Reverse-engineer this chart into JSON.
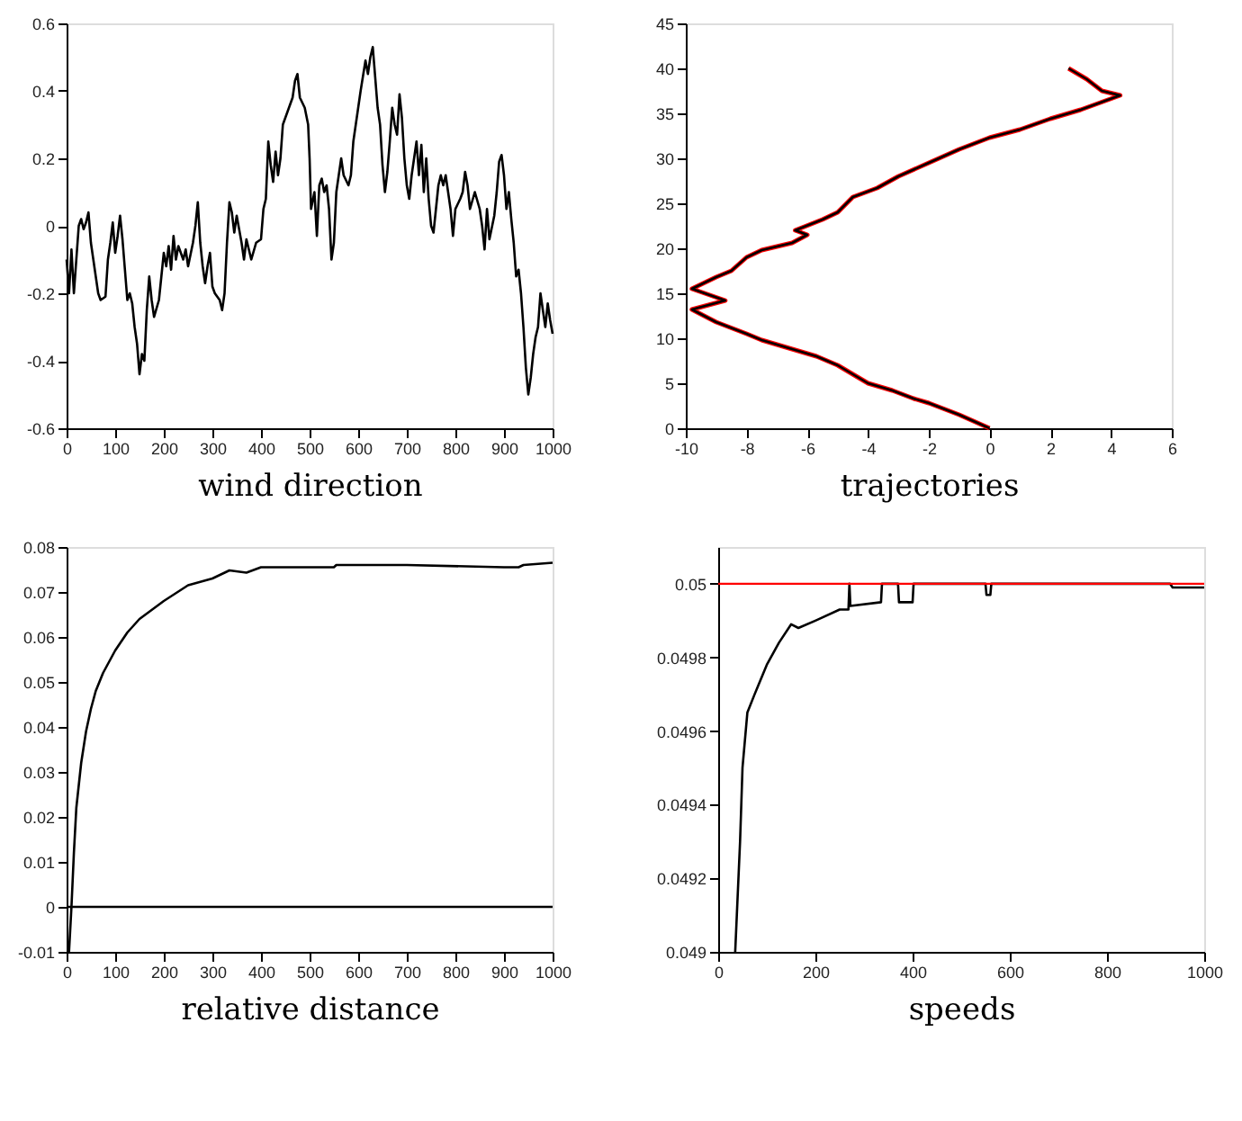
{
  "chart_data": [
    {
      "type": "line",
      "xlabel": "wind direction",
      "xlim": [
        0,
        1000
      ],
      "xticks": [
        0,
        100,
        200,
        300,
        400,
        500,
        600,
        700,
        800,
        900,
        1000
      ],
      "ylim": [
        -0.6,
        0.6
      ],
      "yticks": [
        -0.6,
        -0.4,
        -0.2,
        0,
        0.2,
        0.4,
        0.6
      ],
      "grid": false,
      "legend": false,
      "marker": "none",
      "line_style": "solid",
      "series": [
        {
          "color": "#000000",
          "x": [
            0,
            5,
            10,
            15,
            20,
            25,
            30,
            35,
            40,
            45,
            50,
            55,
            60,
            65,
            70,
            80,
            85,
            90,
            95,
            100,
            105,
            110,
            115,
            120,
            125,
            130,
            135,
            140,
            145,
            150,
            155,
            160,
            165,
            170,
            175,
            180,
            190,
            195,
            200,
            205,
            210,
            215,
            220,
            225,
            230,
            240,
            245,
            250,
            260,
            265,
            270,
            275,
            280,
            285,
            290,
            295,
            300,
            305,
            315,
            320,
            325,
            330,
            335,
            340,
            345,
            350,
            360,
            365,
            370,
            380,
            390,
            400,
            405,
            410,
            415,
            420,
            425,
            430,
            435,
            440,
            445,
            455,
            465,
            470,
            475,
            480,
            490,
            497,
            500,
            503,
            510,
            515,
            520,
            525,
            530,
            535,
            540,
            545,
            550,
            555,
            560,
            565,
            570,
            580,
            585,
            590,
            600,
            605,
            615,
            620,
            625,
            630,
            635,
            640,
            645,
            650,
            655,
            660,
            665,
            670,
            675,
            680,
            685,
            690,
            695,
            700,
            705,
            710,
            715,
            720,
            725,
            730,
            735,
            740,
            745,
            750,
            755,
            760,
            765,
            770,
            775,
            780,
            785,
            790,
            795,
            800,
            810,
            815,
            820,
            825,
            830,
            840,
            850,
            855,
            860,
            865,
            870,
            880,
            885,
            890,
            895,
            900,
            905,
            910,
            915,
            920,
            925,
            930,
            935,
            940,
            945,
            950,
            955,
            960,
            965,
            970,
            975,
            980,
            985,
            990,
            995,
            1000
          ],
          "values": [
            -0.1,
            -0.2,
            -0.07,
            -0.2,
            -0.1,
            0.0,
            0.02,
            -0.01,
            0.01,
            0.04,
            -0.05,
            -0.1,
            -0.15,
            -0.2,
            -0.22,
            -0.21,
            -0.1,
            -0.05,
            0.01,
            -0.08,
            -0.03,
            0.03,
            -0.04,
            -0.13,
            -0.22,
            -0.2,
            -0.23,
            -0.3,
            -0.35,
            -0.44,
            -0.38,
            -0.4,
            -0.25,
            -0.15,
            -0.22,
            -0.27,
            -0.22,
            -0.15,
            -0.08,
            -0.12,
            -0.06,
            -0.13,
            -0.03,
            -0.1,
            -0.06,
            -0.1,
            -0.07,
            -0.12,
            -0.05,
            0.0,
            0.07,
            -0.05,
            -0.12,
            -0.17,
            -0.12,
            -0.08,
            -0.18,
            -0.2,
            -0.22,
            -0.25,
            -0.2,
            -0.05,
            0.07,
            0.04,
            -0.02,
            0.03,
            -0.05,
            -0.1,
            -0.04,
            -0.1,
            -0.05,
            -0.04,
            0.05,
            0.08,
            0.25,
            0.18,
            0.13,
            0.22,
            0.15,
            0.2,
            0.3,
            0.34,
            0.38,
            0.43,
            0.45,
            0.38,
            0.35,
            0.3,
            0.2,
            0.05,
            0.1,
            -0.03,
            0.12,
            0.14,
            0.1,
            0.12,
            0.05,
            -0.1,
            -0.05,
            0.1,
            0.15,
            0.2,
            0.15,
            0.12,
            0.15,
            0.25,
            0.35,
            0.4,
            0.49,
            0.45,
            0.5,
            0.53,
            0.44,
            0.35,
            0.3,
            0.18,
            0.1,
            0.16,
            0.25,
            0.35,
            0.3,
            0.27,
            0.39,
            0.32,
            0.2,
            0.12,
            0.08,
            0.15,
            0.2,
            0.25,
            0.15,
            0.24,
            0.1,
            0.2,
            0.08,
            0.0,
            -0.02,
            0.05,
            0.12,
            0.15,
            0.12,
            0.15,
            0.1,
            0.05,
            -0.03,
            0.05,
            0.08,
            0.1,
            0.16,
            0.12,
            0.05,
            0.1,
            0.05,
            0.0,
            -0.07,
            0.05,
            -0.04,
            0.03,
            0.1,
            0.19,
            0.21,
            0.15,
            0.05,
            0.1,
            0.02,
            -0.05,
            -0.15,
            -0.13,
            -0.2,
            -0.3,
            -0.42,
            -0.5,
            -0.45,
            -0.38,
            -0.33,
            -0.3,
            -0.2,
            -0.25,
            -0.3,
            -0.23,
            -0.28,
            -0.32
          ]
        }
      ]
    },
    {
      "type": "line",
      "xlabel": "trajectories",
      "xlim": [
        -10,
        6
      ],
      "xticks": [
        -10,
        -8,
        -6,
        -4,
        -2,
        0,
        2,
        4,
        6
      ],
      "ylim": [
        0,
        45
      ],
      "yticks": [
        0,
        5,
        10,
        15,
        20,
        25,
        30,
        35,
        40,
        45
      ],
      "grid": false,
      "legend": false,
      "marker": "none",
      "line_style": "solid",
      "series": [
        {
          "color": "#ff0000",
          "x": [
            0,
            -1,
            -2,
            -2.5,
            -3.2,
            -4,
            -4.5,
            -5,
            -5.7,
            -6.5,
            -7.5,
            -8,
            -9,
            -9.8,
            -8.7,
            -9.8,
            -9,
            -8.5,
            -8,
            -7.5,
            -6.5,
            -6,
            -6.4,
            -5.5,
            -5,
            -4.5,
            -3.7,
            -3,
            -2,
            -1,
            0,
            1,
            2,
            3,
            4.3,
            3.7,
            3.2,
            2.6
          ],
          "values": [
            0,
            1.5,
            2.8,
            3.3,
            4.2,
            5,
            6,
            7,
            8,
            8.8,
            9.8,
            10.5,
            11.8,
            13.2,
            14.2,
            15.5,
            16.8,
            17.5,
            19,
            19.8,
            20.6,
            21.5,
            22,
            23.2,
            24,
            25.7,
            26.7,
            28,
            29.5,
            31,
            32.3,
            33.2,
            34.4,
            35.4,
            37,
            37.5,
            38.8,
            40
          ]
        },
        {
          "color": "#000000",
          "x": [
            0,
            -1,
            -2,
            -2.5,
            -3.2,
            -4,
            -4.5,
            -5,
            -5.7,
            -6.5,
            -7.5,
            -8,
            -9,
            -9.8,
            -8.7,
            -9.8,
            -9,
            -8.5,
            -8,
            -7.5,
            -6.5,
            -6,
            -6.4,
            -5.5,
            -5,
            -4.5,
            -3.7,
            -3,
            -2,
            -1,
            0,
            1,
            2,
            3,
            4.3,
            3.7,
            3.2,
            2.6
          ],
          "values": [
            0,
            1.5,
            2.8,
            3.3,
            4.2,
            5,
            6,
            7,
            8,
            8.8,
            9.8,
            10.5,
            11.8,
            13.2,
            14.2,
            15.5,
            16.8,
            17.5,
            19,
            19.8,
            20.6,
            21.5,
            22,
            23.2,
            24,
            25.7,
            26.7,
            28,
            29.5,
            31,
            32.3,
            33.2,
            34.4,
            35.4,
            37,
            37.5,
            38.8,
            40
          ]
        }
      ]
    },
    {
      "type": "line",
      "xlabel": "relative distance",
      "xlim": [
        0,
        1000
      ],
      "xticks": [
        0,
        100,
        200,
        300,
        400,
        500,
        600,
        700,
        800,
        900,
        1000
      ],
      "ylim": [
        -0.01,
        0.08
      ],
      "yticks": [
        -0.01,
        0,
        0.01,
        0.02,
        0.03,
        0.04,
        0.05,
        0.06,
        0.07,
        0.08
      ],
      "grid": false,
      "legend": false,
      "marker": "none",
      "line_style": "solid",
      "ref_lines": [
        {
          "axis": "y",
          "value": 0,
          "color": "#000000"
        }
      ],
      "series": [
        {
          "color": "#000000",
          "x": [
            5,
            10,
            15,
            20,
            30,
            40,
            50,
            60,
            75,
            100,
            125,
            150,
            175,
            200,
            250,
            300,
            335,
            370,
            400,
            500,
            550,
            555,
            700,
            900,
            930,
            940,
            1000
          ],
          "values": [
            -0.01,
            0.0,
            0.012,
            0.022,
            0.032,
            0.039,
            0.044,
            0.048,
            0.052,
            0.057,
            0.061,
            0.064,
            0.066,
            0.068,
            0.0715,
            0.073,
            0.0748,
            0.0743,
            0.0755,
            0.0755,
            0.0755,
            0.076,
            0.076,
            0.0755,
            0.0755,
            0.076,
            0.0765
          ]
        }
      ]
    },
    {
      "type": "line",
      "xlabel": "speeds",
      "xlim": [
        0,
        1000
      ],
      "xticks": [
        0,
        200,
        400,
        600,
        800,
        1000
      ],
      "ylim": [
        0.049,
        0.0501
      ],
      "yticks": [
        0.049,
        0.0492,
        0.0494,
        0.0496,
        0.0498,
        0.05
      ],
      "grid": false,
      "legend": false,
      "marker": "none",
      "line_style": "solid",
      "ref_lines": [
        {
          "axis": "y",
          "value": 0.05,
          "color": "#ff0000"
        }
      ],
      "series": [
        {
          "color": "#000000",
          "x": [
            35,
            45,
            50,
            60,
            75,
            100,
            125,
            150,
            165,
            200,
            250,
            268,
            270,
            272,
            335,
            337,
            370,
            372,
            400,
            402,
            550,
            552,
            560,
            562,
            930,
            935,
            1000
          ],
          "values": [
            0.049,
            0.0493,
            0.0495,
            0.04965,
            0.0497,
            0.04978,
            0.04984,
            0.04989,
            0.04988,
            0.0499,
            0.04993,
            0.04993,
            0.05,
            0.04994,
            0.04995,
            0.05,
            0.05,
            0.04995,
            0.04995,
            0.05,
            0.05,
            0.04997,
            0.04997,
            0.05,
            0.05,
            0.04999,
            0.04999
          ]
        }
      ]
    }
  ]
}
